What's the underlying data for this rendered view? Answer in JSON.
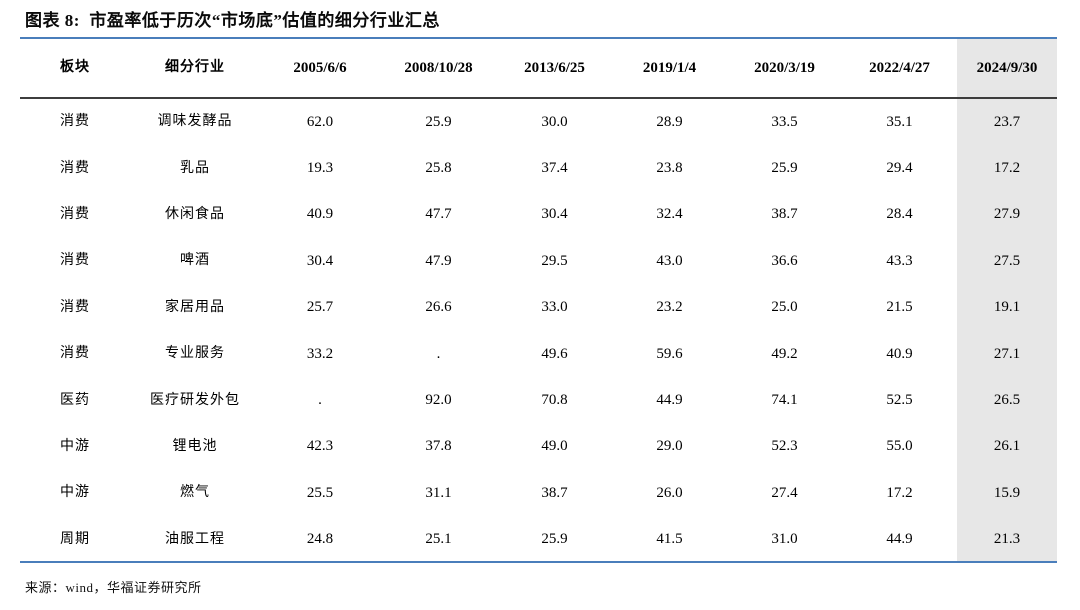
{
  "title": "图表 8:  市盈率低于历次“市场底”估值的细分行业汇总",
  "footer_source": "来源：wind，华福证券研究所",
  "colors": {
    "accent_blue_rule": "#4a7ebb",
    "header_rule_dark": "#3d3d3d",
    "highlight_column_bg": "#e7e7e7",
    "text": "#000000"
  },
  "chart_data": {
    "type": "table",
    "figure_label": "图表 8",
    "title": "市盈率低于历次“市场底”估值的细分行业汇总",
    "columns": [
      "板块",
      "细分行业",
      "2005/6/6",
      "2008/10/28",
      "2013/6/25",
      "2019/1/4",
      "2020/3/19",
      "2022/4/27",
      "2024/9/30"
    ],
    "highlight_column": "2024/9/30",
    "missing_value_marker": ".",
    "rows": [
      [
        "消费",
        "调味发酵品",
        "62.0",
        "25.9",
        "30.0",
        "28.9",
        "33.5",
        "35.1",
        "23.7"
      ],
      [
        "消费",
        "乳品",
        "19.3",
        "25.8",
        "37.4",
        "23.8",
        "25.9",
        "29.4",
        "17.2"
      ],
      [
        "消费",
        "休闲食品",
        "40.9",
        "47.7",
        "30.4",
        "32.4",
        "38.7",
        "28.4",
        "27.9"
      ],
      [
        "消费",
        "啤酒",
        "30.4",
        "47.9",
        "29.5",
        "43.0",
        "36.6",
        "43.3",
        "27.5"
      ],
      [
        "消费",
        "家居用品",
        "25.7",
        "26.6",
        "33.0",
        "23.2",
        "25.0",
        "21.5",
        "19.1"
      ],
      [
        "消费",
        "专业服务",
        "33.2",
        ".",
        "49.6",
        "59.6",
        "49.2",
        "40.9",
        "27.1"
      ],
      [
        "医药",
        "医疗研发外包",
        ".",
        "92.0",
        "70.8",
        "44.9",
        "74.1",
        "52.5",
        "26.5"
      ],
      [
        "中游",
        "锂电池",
        "42.3",
        "37.8",
        "49.0",
        "29.0",
        "52.3",
        "55.0",
        "26.1"
      ],
      [
        "中游",
        "燃气",
        "25.5",
        "31.1",
        "38.7",
        "26.0",
        "27.4",
        "17.2",
        "15.9"
      ],
      [
        "周期",
        "油服工程",
        "24.8",
        "25.1",
        "25.9",
        "41.5",
        "31.0",
        "44.9",
        "21.3"
      ]
    ],
    "source_note": "来源：wind，华福证券研究所"
  }
}
